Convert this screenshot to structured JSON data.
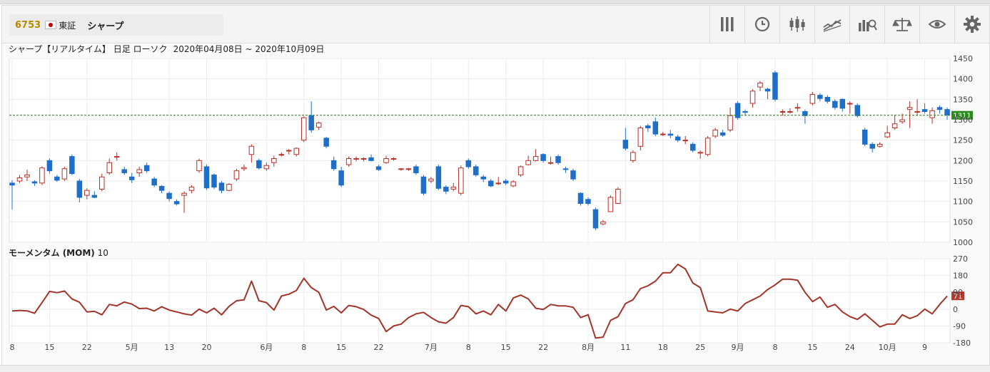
{
  "header": {
    "code": "6753",
    "market": "東証",
    "name": "シャープ",
    "tools": [
      {
        "icon": "vertical-bars-icon"
      },
      {
        "icon": "clock-icon"
      },
      {
        "icon": "candlestick-icon"
      },
      {
        "icon": "trend-line-icon"
      },
      {
        "icon": "search-chart-icon"
      },
      {
        "icon": "scale-icon"
      },
      {
        "icon": "eye-icon"
      },
      {
        "icon": "gear-icon"
      }
    ]
  },
  "chart_title": {
    "main": "シャープ【リアルタイム】 日足 ローソク",
    "range": "2020年04月08日 ~ 2020年10月09日"
  },
  "momentum_title": {
    "name": "モーメンタム (MOM)",
    "period": "10"
  },
  "chart_data": [
    {
      "type": "candlestick",
      "ylim": [
        1000,
        1450
      ],
      "yticks": [
        "1450",
        "1400",
        "1350",
        "1300",
        "1250",
        "1200",
        "1150",
        "1100",
        "1050",
        "1000"
      ],
      "current_price": "1311",
      "colors": {
        "up": "#b8302a",
        "down": "#1f6fc9",
        "current_line": "#2e7d1e",
        "current_label_bg": "#2e8b1f"
      },
      "candles": [
        [
          1145,
          1140,
          1152,
          1080
        ],
        [
          1150,
          1158,
          1165,
          1145
        ],
        [
          1160,
          1165,
          1178,
          1150
        ],
        [
          1148,
          1145,
          1152,
          1138
        ],
        [
          1145,
          1182,
          1186,
          1140
        ],
        [
          1200,
          1175,
          1205,
          1168
        ],
        [
          1160,
          1152,
          1165,
          1148
        ],
        [
          1155,
          1180,
          1185,
          1150
        ],
        [
          1210,
          1168,
          1215,
          1165
        ],
        [
          1150,
          1110,
          1155,
          1098
        ],
        [
          1115,
          1127,
          1132,
          1105
        ],
        [
          1115,
          1110,
          1125,
          1108
        ],
        [
          1130,
          1160,
          1168,
          1125
        ],
        [
          1170,
          1195,
          1205,
          1165
        ],
        [
          1210,
          1210,
          1220,
          1200
        ],
        [
          1178,
          1170,
          1185,
          1165
        ],
        [
          1160,
          1153,
          1170,
          1145
        ],
        [
          1170,
          1178,
          1185,
          1160
        ],
        [
          1188,
          1175,
          1195,
          1170
        ],
        [
          1155,
          1140,
          1160,
          1135
        ],
        [
          1137,
          1127,
          1140,
          1120
        ],
        [
          1120,
          1107,
          1125,
          1100
        ],
        [
          1100,
          1094,
          1105,
          1090
        ],
        [
          1115,
          1120,
          1125,
          1072
        ],
        [
          1127,
          1135,
          1140,
          1120
        ],
        [
          1175,
          1200,
          1205,
          1170
        ],
        [
          1185,
          1133,
          1190,
          1128
        ],
        [
          1165,
          1135,
          1168,
          1130
        ],
        [
          1145,
          1127,
          1150,
          1120
        ],
        [
          1127,
          1142,
          1145,
          1125
        ],
        [
          1155,
          1175,
          1180,
          1150
        ],
        [
          1180,
          1183,
          1190,
          1175
        ],
        [
          1215,
          1235,
          1240,
          1195
        ],
        [
          1200,
          1182,
          1205,
          1178
        ],
        [
          1180,
          1188,
          1195,
          1175
        ],
        [
          1195,
          1205,
          1212,
          1185
        ],
        [
          1215,
          1215,
          1220,
          1210
        ],
        [
          1225,
          1225,
          1228,
          1215
        ],
        [
          1215,
          1230,
          1232,
          1210
        ],
        [
          1250,
          1305,
          1308,
          1245
        ],
        [
          1310,
          1275,
          1345,
          1268
        ],
        [
          1282,
          1292,
          1295,
          1275
        ],
        [
          1255,
          1235,
          1258,
          1230
        ],
        [
          1200,
          1180,
          1210,
          1175
        ],
        [
          1175,
          1140,
          1185,
          1135
        ],
        [
          1190,
          1205,
          1210,
          1185
        ],
        [
          1205,
          1205,
          1210,
          1198
        ],
        [
          1205,
          1205,
          1208,
          1198
        ],
        [
          1207,
          1200,
          1215,
          1198
        ],
        [
          1185,
          1178,
          1190,
          1175
        ],
        [
          1195,
          1205,
          1212,
          1192
        ],
        [
          1205,
          1205,
          1208,
          1200
        ],
        [
          1180,
          1180,
          1182,
          1175
        ],
        [
          1180,
          1180,
          1182,
          1175
        ],
        [
          1185,
          1170,
          1190,
          1165
        ],
        [
          1160,
          1120,
          1165,
          1115
        ],
        [
          1150,
          1155,
          1160,
          1145
        ],
        [
          1185,
          1132,
          1190,
          1128
        ],
        [
          1135,
          1125,
          1140,
          1118
        ],
        [
          1130,
          1135,
          1145,
          1125
        ],
        [
          1120,
          1182,
          1188,
          1115
        ],
        [
          1200,
          1185,
          1205,
          1180
        ],
        [
          1185,
          1165,
          1190,
          1160
        ],
        [
          1160,
          1155,
          1165,
          1148
        ],
        [
          1150,
          1138,
          1155,
          1135
        ],
        [
          1145,
          1145,
          1160,
          1140
        ],
        [
          1150,
          1145,
          1155,
          1140
        ],
        [
          1138,
          1148,
          1152,
          1135
        ],
        [
          1165,
          1185,
          1188,
          1160
        ],
        [
          1190,
          1200,
          1212,
          1188
        ],
        [
          1200,
          1210,
          1228,
          1198
        ],
        [
          1215,
          1200,
          1218,
          1195
        ],
        [
          1195,
          1195,
          1210,
          1190
        ],
        [
          1210,
          1195,
          1215,
          1190
        ],
        [
          1180,
          1178,
          1185,
          1170
        ],
        [
          1175,
          1155,
          1180,
          1150
        ],
        [
          1120,
          1095,
          1122,
          1090
        ],
        [
          1105,
          1095,
          1110,
          1090
        ],
        [
          1080,
          1035,
          1085,
          1030
        ],
        [
          1045,
          1050,
          1055,
          1042
        ],
        [
          1075,
          1110,
          1115,
          1075
        ],
        [
          1095,
          1130,
          1135,
          1095
        ],
        [
          1250,
          1230,
          1280,
          1225
        ],
        [
          1200,
          1220,
          1225,
          1195
        ],
        [
          1235,
          1280,
          1285,
          1225
        ],
        [
          1285,
          1280,
          1290,
          1270
        ],
        [
          1295,
          1265,
          1305,
          1260
        ],
        [
          1265,
          1265,
          1270,
          1260
        ],
        [
          1265,
          1262,
          1275,
          1255
        ],
        [
          1258,
          1250,
          1263,
          1245
        ],
        [
          1250,
          1250,
          1260,
          1240
        ],
        [
          1240,
          1225,
          1245,
          1220
        ],
        [
          1220,
          1220,
          1225,
          1205
        ],
        [
          1215,
          1255,
          1260,
          1210
        ],
        [
          1260,
          1275,
          1280,
          1255
        ],
        [
          1268,
          1262,
          1275,
          1258
        ],
        [
          1275,
          1310,
          1330,
          1270
        ],
        [
          1340,
          1305,
          1345,
          1300
        ],
        [
          1320,
          1318,
          1325,
          1310
        ],
        [
          1340,
          1370,
          1375,
          1330
        ],
        [
          1380,
          1390,
          1395,
          1370
        ],
        [
          1375,
          1370,
          1378,
          1350
        ],
        [
          1415,
          1350,
          1420,
          1345
        ],
        [
          1320,
          1320,
          1325,
          1310
        ],
        [
          1320,
          1320,
          1328,
          1315
        ],
        [
          1330,
          1330,
          1340,
          1320
        ],
        [
          1320,
          1310,
          1325,
          1290
        ],
        [
          1340,
          1362,
          1368,
          1335
        ],
        [
          1360,
          1352,
          1365,
          1345
        ],
        [
          1355,
          1345,
          1360,
          1340
        ],
        [
          1345,
          1330,
          1350,
          1325
        ],
        [
          1350,
          1328,
          1352,
          1320
        ],
        [
          1340,
          1340,
          1345,
          1315
        ],
        [
          1335,
          1310,
          1340,
          1305
        ],
        [
          1275,
          1240,
          1280,
          1235
        ],
        [
          1240,
          1230,
          1245,
          1220
        ],
        [
          1235,
          1240,
          1245,
          1232
        ],
        [
          1258,
          1268,
          1285,
          1255
        ],
        [
          1280,
          1290,
          1312,
          1275
        ],
        [
          1295,
          1300,
          1315,
          1290
        ],
        [
          1325,
          1330,
          1345,
          1280
        ],
        [
          1320,
          1320,
          1350,
          1310
        ],
        [
          1325,
          1320,
          1340,
          1315
        ],
        [
          1305,
          1322,
          1330,
          1290
        ],
        [
          1330,
          1325,
          1335,
          1315
        ],
        [
          1325,
          1312,
          1330,
          1300
        ]
      ]
    },
    {
      "type": "line",
      "series": [
        {
          "values": [
            -10,
            -7,
            -9,
            -22,
            35,
            95,
            88,
            97,
            55,
            37,
            -15,
            -12,
            -30,
            25,
            18,
            38,
            27,
            3,
            5,
            -10,
            13,
            -5,
            -15,
            -25,
            -32,
            0,
            -20,
            5,
            -30,
            15,
            45,
            50,
            150,
            45,
            35,
            -5,
            70,
            80,
            100,
            165,
            115,
            90,
            -5,
            15,
            -20,
            20,
            13,
            -2,
            -32,
            -50,
            -120,
            -90,
            -80,
            -45,
            -25,
            -17,
            -45,
            -68,
            -75,
            -45,
            20,
            13,
            -25,
            -10,
            -30,
            25,
            -10,
            60,
            75,
            55,
            5,
            -2,
            25,
            18,
            17,
            10,
            -45,
            -30,
            -155,
            -150,
            -60,
            -40,
            30,
            50,
            110,
            125,
            150,
            195,
            195,
            240,
            215,
            140,
            115,
            -10,
            -15,
            -20,
            0,
            -10,
            30,
            50,
            70,
            105,
            130,
            160,
            160,
            155,
            90,
            40,
            65,
            10,
            25,
            -15,
            -40,
            -55,
            -25,
            -60,
            -95,
            -80,
            -80,
            -30,
            -50,
            -35,
            0,
            -25,
            25,
            70
          ]
        }
      ],
      "ylim": [
        -180,
        270
      ],
      "yticks": [
        "270",
        "180",
        "90",
        "0",
        "-90",
        "-180"
      ],
      "current_value": "71",
      "colors": {
        "line": "#a3342a",
        "current_label_bg": "#b23a2f"
      }
    }
  ],
  "x_axis": {
    "labels": [
      {
        "i": 0,
        "text": "8"
      },
      {
        "i": 5,
        "text": "15"
      },
      {
        "i": 10,
        "text": "22"
      },
      {
        "i": 16,
        "text": "5月"
      },
      {
        "i": 21,
        "text": "13"
      },
      {
        "i": 26,
        "text": "20"
      },
      {
        "i": 34,
        "text": "6月"
      },
      {
        "i": 39,
        "text": "8"
      },
      {
        "i": 44,
        "text": "15"
      },
      {
        "i": 49,
        "text": "22"
      },
      {
        "i": 56,
        "text": "7月"
      },
      {
        "i": 61,
        "text": "8"
      },
      {
        "i": 66,
        "text": "15"
      },
      {
        "i": 71,
        "text": "22"
      },
      {
        "i": 77,
        "text": "8月"
      },
      {
        "i": 82,
        "text": "11"
      },
      {
        "i": 87,
        "text": "18"
      },
      {
        "i": 92,
        "text": "25"
      },
      {
        "i": 97,
        "text": "9月"
      },
      {
        "i": 102,
        "text": "8"
      },
      {
        "i": 107,
        "text": "15"
      },
      {
        "i": 112,
        "text": "24"
      },
      {
        "i": 117,
        "text": "10月"
      },
      {
        "i": 122,
        "text": "9"
      }
    ]
  }
}
